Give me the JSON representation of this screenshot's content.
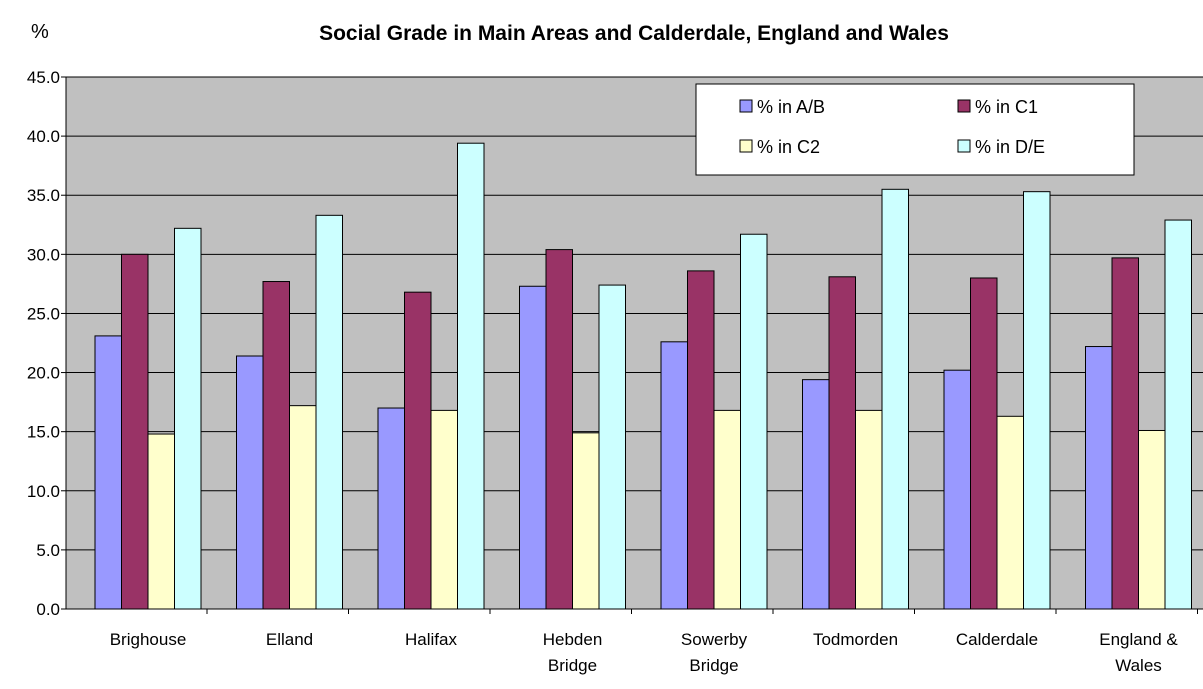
{
  "chart_data": {
    "type": "bar",
    "title": "Social Grade in Main Areas and Calderdale, England and Wales",
    "ylabel": "%",
    "xlabel": "",
    "ylim": [
      0,
      45
    ],
    "yticks": [
      "0.0",
      "5.0",
      "10.0",
      "15.0",
      "20.0",
      "25.0",
      "30.0",
      "35.0",
      "40.0",
      "45.0"
    ],
    "grid": true,
    "legend_position": "top-right",
    "categories": [
      [
        "Brighouse"
      ],
      [
        "Elland"
      ],
      [
        "Halifax"
      ],
      [
        "Hebden",
        "Bridge"
      ],
      [
        "Sowerby",
        "Bridge"
      ],
      [
        "Todmorden"
      ],
      [
        "Calderdale"
      ],
      [
        "England &",
        "Wales"
      ]
    ],
    "series": [
      {
        "name": "% in A/B",
        "color": "#9999ff",
        "values": [
          23.1,
          21.4,
          17.0,
          27.3,
          22.6,
          19.4,
          20.2,
          22.2
        ]
      },
      {
        "name": "% in C1",
        "color": "#993366",
        "values": [
          30.0,
          27.7,
          26.8,
          30.4,
          28.6,
          28.1,
          28.0,
          29.7
        ]
      },
      {
        "name": "% in C2",
        "color": "#ffffcc",
        "values": [
          14.8,
          17.2,
          16.8,
          14.9,
          16.8,
          16.8,
          16.3,
          15.1
        ]
      },
      {
        "name": "% in D/E",
        "color": "#ccffff",
        "values": [
          32.2,
          33.3,
          39.4,
          27.4,
          31.7,
          35.5,
          35.3,
          32.9
        ]
      }
    ],
    "plot_bg": "#c0c0c0"
  }
}
